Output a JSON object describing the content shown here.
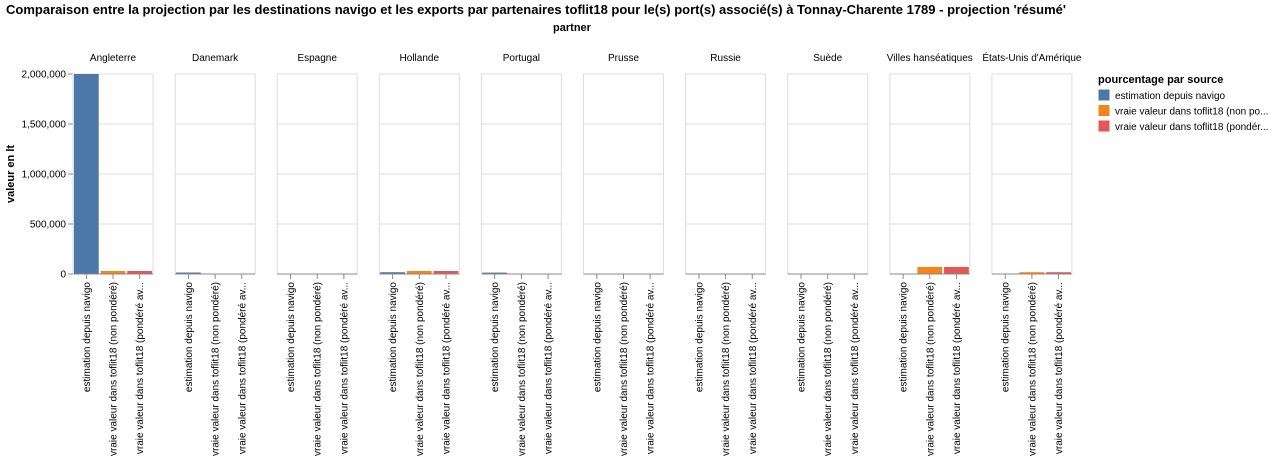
{
  "chart_data": {
    "type": "bar",
    "title": "Comparaison entre la projection par les destinations navigo et les exports par partenaires toflit18 pour le(s) port(s) associé(s) à Tonnay-Charente 1789 - projection 'résumé'",
    "facet_title": "partner",
    "ylabel": "valeur en lt",
    "ylim": [
      0,
      2000000
    ],
    "yticks": [
      "0",
      "500,000",
      "1,000,000",
      "1,500,000",
      "2,000,000"
    ],
    "ytick_values": [
      0,
      500000,
      1000000,
      1500000,
      2000000
    ],
    "categories": [
      "estimation depuis navigo",
      "vraie valeur dans toflit18 (non pondéré)",
      "vraie valeur dans toflit18 (pondéré av..."
    ],
    "category_labels": [
      "estimation depuis navigo",
      "vraie valeur dans toflit18 (non pondéré)",
      "vraie valeur dans toflit18 (pondéré av..."
    ],
    "legend": {
      "title": "pourcentage par source",
      "placement": "right",
      "entries": [
        {
          "label": "estimation depuis navigo",
          "color": "#4c78a8"
        },
        {
          "label": "vraie valeur dans toflit18 (non po...",
          "color": "#f58518"
        },
        {
          "label": "vraie valeur dans toflit18 (pondér...",
          "color": "#e45756"
        }
      ]
    },
    "grid": true,
    "facets": [
      {
        "partner": "Angleterre",
        "values": [
          2000000,
          30000,
          30000
        ]
      },
      {
        "partner": "Danemark",
        "values": [
          15000,
          1000,
          1000
        ]
      },
      {
        "partner": "Espagne",
        "values": [
          3000,
          1000,
          1000
        ]
      },
      {
        "partner": "Hollande",
        "values": [
          18000,
          30000,
          30000
        ]
      },
      {
        "partner": "Portugal",
        "values": [
          14000,
          1000,
          1000
        ]
      },
      {
        "partner": "Prusse",
        "values": [
          3000,
          1000,
          1000
        ]
      },
      {
        "partner": "Russie",
        "values": [
          3000,
          1000,
          1000
        ]
      },
      {
        "partner": "Suède",
        "values": [
          3000,
          1000,
          1000
        ]
      },
      {
        "partner": "Villes hanséatiques",
        "values": [
          3000,
          70000,
          70000
        ]
      },
      {
        "partner": "États-Unis d'Amérique",
        "values": [
          3000,
          18000,
          18000
        ]
      }
    ]
  }
}
